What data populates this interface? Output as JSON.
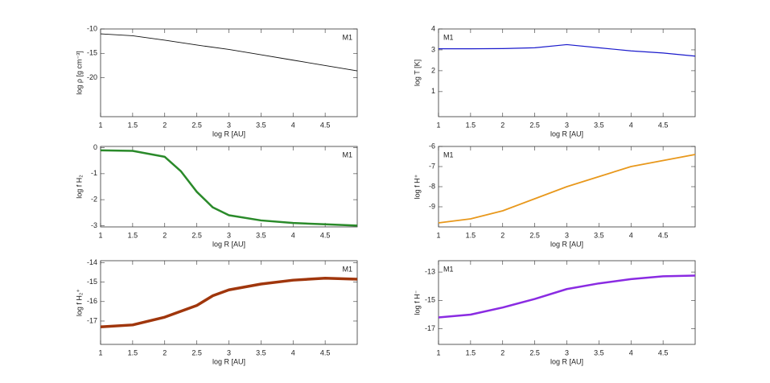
{
  "chart_data": [
    {
      "type": "line",
      "color": "#111111",
      "annotation": "M1",
      "annotation_corner": "upper right",
      "xlabel": "log R [AU]",
      "ylabel": "log ρ [g cm⁻³]",
      "x": [
        1,
        1.5,
        2,
        2.5,
        3,
        3.5,
        4,
        4.5,
        5
      ],
      "values": [
        -11.0,
        -11.4,
        -12.3,
        -13.3,
        -14.2,
        -15.3,
        -16.4,
        -17.5,
        -18.6
      ],
      "xlim": [
        1,
        5
      ],
      "xticks": [
        1,
        1.5,
        2,
        2.5,
        3,
        3.5,
        4,
        4.5
      ],
      "ylim": [
        -28,
        -10
      ],
      "yticks": [
        -10,
        -15,
        -20
      ]
    },
    {
      "type": "line",
      "color": "#1a1acc",
      "annotation": "M1",
      "annotation_corner": "upper left",
      "xlabel": "log R [AU]",
      "ylabel": "log T [K]",
      "x": [
        1,
        1.5,
        2,
        2.5,
        3,
        3.5,
        4,
        4.5,
        5
      ],
      "values": [
        3.05,
        3.05,
        3.06,
        3.1,
        3.25,
        3.1,
        2.95,
        2.85,
        2.7
      ],
      "xlim": [
        1,
        5
      ],
      "xticks": [
        1,
        1.5,
        2,
        2.5,
        3,
        3.5,
        4,
        4.5
      ],
      "ylim": [
        -0.2,
        4
      ],
      "yticks": [
        1,
        2,
        3,
        4
      ]
    },
    {
      "type": "line",
      "color": "#2a8a2a",
      "annotation": "M1",
      "annotation_corner": "upper right",
      "xlabel": "log R [AU]",
      "ylabel": "log f H₂",
      "x": [
        1,
        1.5,
        2,
        2.25,
        2.5,
        2.75,
        3,
        3.5,
        4,
        4.5,
        5
      ],
      "values": [
        -0.1,
        -0.12,
        -0.35,
        -0.9,
        -1.7,
        -2.3,
        -2.6,
        -2.8,
        -2.9,
        -2.95,
        -3.0
      ],
      "xlim": [
        1,
        5
      ],
      "xticks": [
        1,
        1.5,
        2,
        2.5,
        3,
        3.5,
        4,
        4.5
      ],
      "ylim": [
        -3.05,
        0.05
      ],
      "yticks": [
        0,
        -1,
        -2,
        -3
      ]
    },
    {
      "type": "line",
      "color": "#e8981c",
      "annotation": "M1",
      "annotation_corner": "upper left",
      "xlabel": "log R [AU]",
      "ylabel": "log f H⁺",
      "x": [
        1,
        1.5,
        2,
        2.5,
        3,
        3.5,
        4,
        4.5,
        5
      ],
      "values": [
        -9.8,
        -9.6,
        -9.2,
        -8.6,
        -8.0,
        -7.5,
        -7.0,
        -6.7,
        -6.4
      ],
      "xlim": [
        1,
        5
      ],
      "xticks": [
        1,
        1.5,
        2,
        2.5,
        3,
        3.5,
        4,
        4.5
      ],
      "ylim": [
        -10,
        -6
      ],
      "yticks": [
        -6,
        -7,
        -8,
        -9
      ]
    },
    {
      "type": "line",
      "color": "#a0360c",
      "annotation": "M1",
      "annotation_corner": "upper right",
      "xlabel": "log R [AU]",
      "ylabel": "log f H₂⁺",
      "x": [
        1,
        1.5,
        2,
        2.5,
        2.75,
        3,
        3.5,
        4,
        4.5,
        5
      ],
      "values": [
        -17.3,
        -17.2,
        -16.8,
        -16.2,
        -15.7,
        -15.4,
        -15.1,
        -14.9,
        -14.8,
        -14.85
      ],
      "xlim": [
        1,
        5
      ],
      "xticks": [
        1,
        1.5,
        2,
        2.5,
        3,
        3.5,
        4,
        4.5
      ],
      "ylim": [
        -18.2,
        -13.9
      ],
      "yticks": [
        -14,
        -15,
        -16,
        -17
      ]
    },
    {
      "type": "line",
      "color": "#8a2be2",
      "annotation": "M1",
      "annotation_corner": "upper left",
      "xlabel": "log R [AU]",
      "ylabel": "log f H⁻",
      "x": [
        1,
        1.5,
        2,
        2.5,
        3,
        3.5,
        4,
        4.5,
        5
      ],
      "values": [
        -16.2,
        -16.0,
        -15.5,
        -14.9,
        -14.2,
        -13.8,
        -13.5,
        -13.3,
        -13.25
      ],
      "xlim": [
        1,
        5
      ],
      "xticks": [
        1,
        1.5,
        2,
        2.5,
        3,
        3.5,
        4,
        4.5
      ],
      "ylim": [
        -18.1,
        -12.2
      ],
      "yticks": [
        -13,
        -15,
        -17
      ]
    }
  ]
}
